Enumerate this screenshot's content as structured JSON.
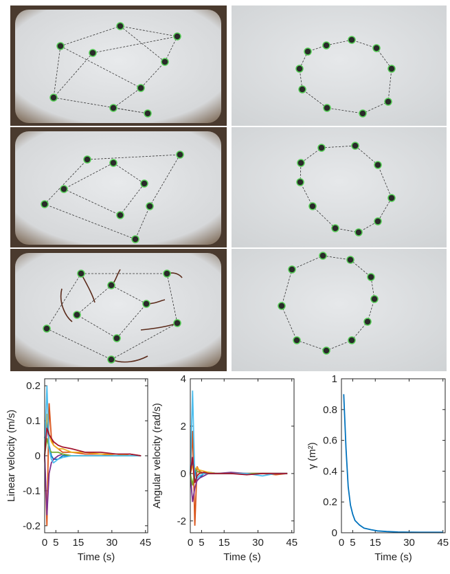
{
  "chart_data": [
    {
      "type": "line",
      "x_label": "Time (s)",
      "y_label": "Linear velocity (m/s)",
      "x": [
        0,
        1,
        2,
        3,
        4,
        6,
        8,
        12,
        18,
        25,
        32,
        38,
        43
      ],
      "xlim": [
        0,
        46
      ],
      "xticks": [
        0,
        5,
        15,
        30,
        45
      ],
      "ylim": [
        -0.22,
        0.22
      ],
      "yticks": [
        -0.2,
        -0.1,
        0,
        0.1,
        0.2
      ],
      "series": [
        {
          "color": "#0072BD",
          "values": [
            0.05,
            0.1,
            0.03,
            0.0,
            -0.01,
            -0.01,
            0,
            0,
            0,
            0,
            0,
            0,
            0
          ]
        },
        {
          "color": "#D95319",
          "values": [
            0.0,
            -0.2,
            0.15,
            0.05,
            0.03,
            0.02,
            0.01,
            0.01,
            0.005,
            0.005,
            0,
            0.005,
            0
          ]
        },
        {
          "color": "#EDB120",
          "values": [
            0,
            0.12,
            0.06,
            0.04,
            0.03,
            0.02,
            0.02,
            0.01,
            0.01,
            0.005,
            0.005,
            0,
            0
          ]
        },
        {
          "color": "#7E2F8E",
          "values": [
            0,
            -0.17,
            -0.05,
            -0.02,
            -0.01,
            0,
            0.005,
            0,
            0,
            0,
            0,
            0,
            0
          ]
        },
        {
          "color": "#77AC30",
          "values": [
            0,
            0.05,
            0.02,
            0.01,
            0.01,
            0.01,
            0.005,
            0,
            0,
            0,
            0,
            0,
            0
          ]
        },
        {
          "color": "#4DBEEE",
          "values": [
            0,
            0.2,
            0.02,
            -0.01,
            -0.02,
            -0.01,
            -0.005,
            0,
            0,
            0,
            0,
            0,
            0
          ]
        },
        {
          "color": "#A2142F",
          "values": [
            0,
            0.08,
            0.06,
            0.05,
            0.04,
            0.03,
            0.025,
            0.02,
            0.01,
            0.01,
            0.005,
            0.005,
            0
          ]
        }
      ]
    },
    {
      "type": "line",
      "x_label": "Time (s)",
      "y_label": "Angular velocity (rad/s)",
      "x": [
        0,
        1,
        2,
        3,
        4,
        6,
        8,
        12,
        18,
        25,
        32,
        38,
        43
      ],
      "xlim": [
        0,
        46
      ],
      "xticks": [
        0,
        5,
        15,
        30,
        45
      ],
      "ylim": [
        -2.5,
        4
      ],
      "yticks": [
        -2,
        0,
        2,
        4
      ],
      "series": [
        {
          "color": "#0072BD",
          "values": [
            0,
            0.5,
            0.2,
            -0.3,
            -0.2,
            0,
            0.05,
            0,
            0,
            0,
            0,
            0,
            0
          ]
        },
        {
          "color": "#D95319",
          "values": [
            0,
            1.8,
            -2.2,
            0.3,
            0.1,
            0,
            0,
            0,
            0,
            0,
            0,
            -0.05,
            0
          ]
        },
        {
          "color": "#EDB120",
          "values": [
            0,
            0.3,
            0.2,
            0.25,
            0.15,
            0.1,
            0.05,
            0,
            0,
            0,
            0,
            0,
            0
          ]
        },
        {
          "color": "#7E2F8E",
          "values": [
            0,
            -1.2,
            -0.6,
            -0.3,
            -0.2,
            -0.1,
            0,
            0,
            0.05,
            0,
            0,
            0,
            0
          ]
        },
        {
          "color": "#77AC30",
          "values": [
            0,
            -0.5,
            0.2,
            0.1,
            0.05,
            0,
            0,
            0,
            0,
            0,
            0,
            0,
            0
          ]
        },
        {
          "color": "#4DBEEE",
          "values": [
            0,
            3.5,
            -0.3,
            -0.2,
            -0.1,
            0,
            0,
            0,
            0,
            0,
            -0.1,
            0,
            0
          ]
        },
        {
          "color": "#A2142F",
          "values": [
            0,
            0.7,
            -0.4,
            -0.1,
            0,
            0.05,
            0,
            0,
            0,
            -0.05,
            0,
            0,
            0
          ]
        }
      ]
    },
    {
      "type": "line",
      "x_label": "Time (s)",
      "y_label": "γ (m²)",
      "x": [
        1,
        2,
        3,
        4,
        5,
        6,
        8,
        10,
        13,
        16,
        20,
        25,
        30,
        35,
        40,
        45
      ],
      "xlim": [
        0,
        46
      ],
      "xticks": [
        0,
        5,
        15,
        30,
        45
      ],
      "ylim": [
        0,
        1
      ],
      "yticks": [
        0,
        0.2,
        0.4,
        0.6,
        0.8,
        1
      ],
      "series": [
        {
          "color": "#0072BD",
          "values": [
            0.9,
            0.55,
            0.3,
            0.18,
            0.12,
            0.08,
            0.05,
            0.03,
            0.02,
            0.012,
            0.008,
            0.005,
            0.004,
            0.003,
            0.003,
            0.003
          ]
        }
      ]
    }
  ]
}
